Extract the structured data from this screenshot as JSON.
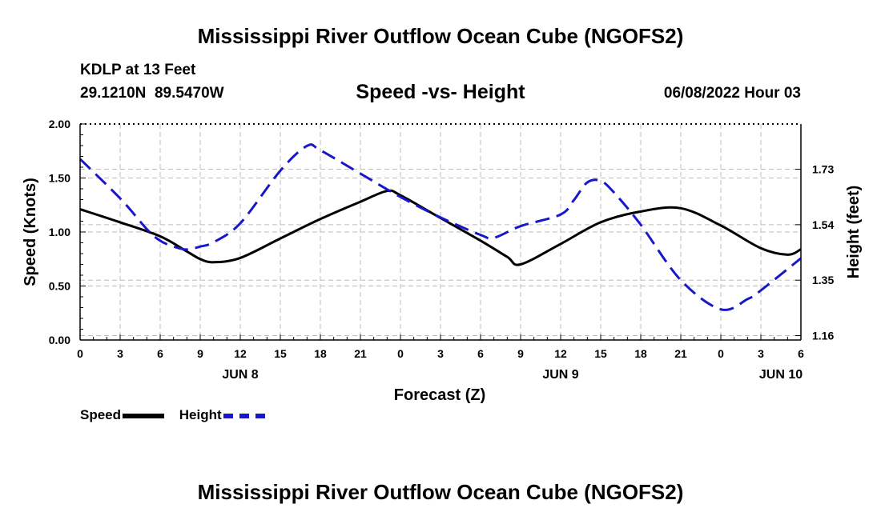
{
  "page_title": "Mississippi River Outflow Ocean Cube (NGOFS2)",
  "page_title_bottom": "Mississippi River Outflow Ocean Cube (NGOFS2)",
  "station": {
    "name": "KDLP at 13 Feet",
    "coords": "29.1210N  89.5470W",
    "datetime": "06/08/2022 Hour 03"
  },
  "colors": {
    "speed": "#000000",
    "height": "#1818c8",
    "grid": "#bdbdbd"
  },
  "chart_data": {
    "type": "line",
    "title": "Speed -vs- Height",
    "xlabel": "Forecast (Z)",
    "ylabel": "Speed (Knots)",
    "y2label": "Height (feet)",
    "xlim": [
      0,
      54
    ],
    "x_ticks": [
      0,
      3,
      6,
      9,
      12,
      15,
      18,
      21,
      24,
      27,
      30,
      33,
      36,
      39,
      42,
      45,
      48,
      51,
      54
    ],
    "x_tick_labels": [
      "0",
      "3",
      "6",
      "9",
      "12",
      "15",
      "18",
      "21",
      "0",
      "3",
      "6",
      "9",
      "12",
      "15",
      "18",
      "21",
      "0",
      "3",
      "6"
    ],
    "day_labels": [
      {
        "x": 12,
        "label": "JUN 8"
      },
      {
        "x": 36,
        "label": "JUN 9"
      },
      {
        "x": 52.5,
        "label": "JUN 10"
      }
    ],
    "ylim": [
      0,
      2.0
    ],
    "y_ticks": [
      0,
      0.5,
      1.0,
      1.5,
      2.0
    ],
    "y_tick_labels": [
      "0.00",
      "0.50",
      "1.00",
      "1.50",
      "2.00"
    ],
    "y2lim": [
      1.145,
      1.885
    ],
    "y2_ticks": [
      1.16,
      1.35,
      1.54,
      1.73
    ],
    "y2_tick_labels": [
      "1.16",
      "1.35",
      "1.54",
      "1.73"
    ],
    "series": [
      {
        "name": "Speed",
        "axis": "left",
        "x": [
          0,
          3,
          6,
          8,
          9,
          10,
          12,
          15,
          18,
          21,
          23,
          24,
          27,
          30,
          32,
          33,
          36,
          39,
          42,
          45,
          48,
          51,
          53,
          54
        ],
        "values": [
          1.21,
          1.09,
          0.96,
          0.82,
          0.75,
          0.72,
          0.76,
          0.94,
          1.12,
          1.28,
          1.38,
          1.34,
          1.13,
          0.92,
          0.77,
          0.7,
          0.89,
          1.09,
          1.19,
          1.22,
          1.06,
          0.85,
          0.79,
          0.84
        ]
      },
      {
        "name": "Height",
        "axis": "right",
        "x": [
          0,
          3,
          5,
          6,
          7,
          8,
          9,
          10,
          12,
          15,
          17,
          18,
          21,
          24,
          27,
          30,
          31,
          33,
          36,
          37,
          38,
          39,
          40,
          42,
          45,
          48,
          50,
          51,
          54
        ],
        "values": [
          1.765,
          1.63,
          1.525,
          1.485,
          1.465,
          1.455,
          1.465,
          1.48,
          1.545,
          1.725,
          1.81,
          1.795,
          1.715,
          1.635,
          1.565,
          1.505,
          1.495,
          1.535,
          1.575,
          1.625,
          1.685,
          1.69,
          1.65,
          1.54,
          1.35,
          1.25,
          1.285,
          1.315,
          1.425
        ]
      }
    ],
    "legend": [
      {
        "label": "Speed",
        "style": "solid"
      },
      {
        "label": "Height",
        "style": "dashed"
      }
    ]
  }
}
